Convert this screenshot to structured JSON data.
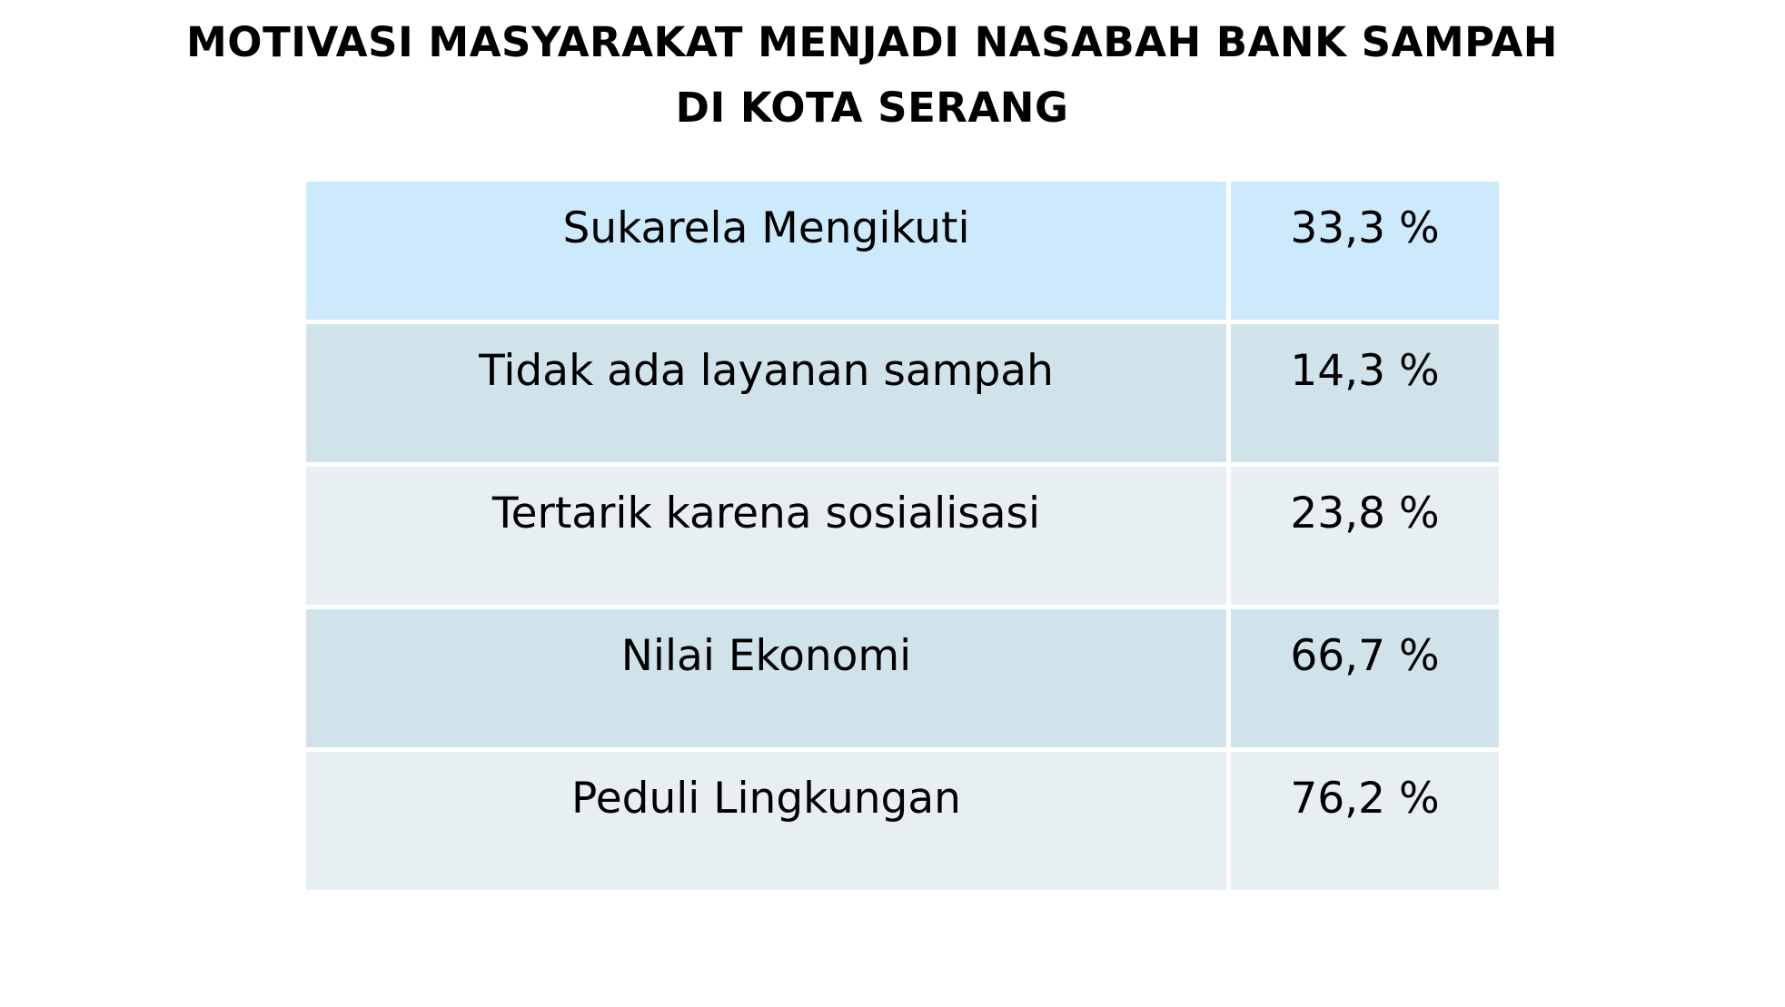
{
  "title": {
    "line1": "MOTIVASI MASYARAKAT MENJADI NASABAH BANK SAMPAH",
    "line2": "DI KOTA SERANG"
  },
  "table": {
    "rows": [
      {
        "label": "Sukarela Mengikuti",
        "value": "33,3 %",
        "color": "#cceafb"
      },
      {
        "label": "Tidak ada layanan sampah",
        "value": "14,3 %",
        "color": "#d1e3ea"
      },
      {
        "label": "Tertarik karena sosialisasi",
        "value": "23,8 %",
        "color": "#e8eff2"
      },
      {
        "label": "Nilai Ekonomi",
        "value": "66,7 %",
        "color": "#d1e3ea"
      },
      {
        "label": "Peduli Lingkungan",
        "value": "76,2 %",
        "color": "#e8eff2"
      }
    ]
  }
}
